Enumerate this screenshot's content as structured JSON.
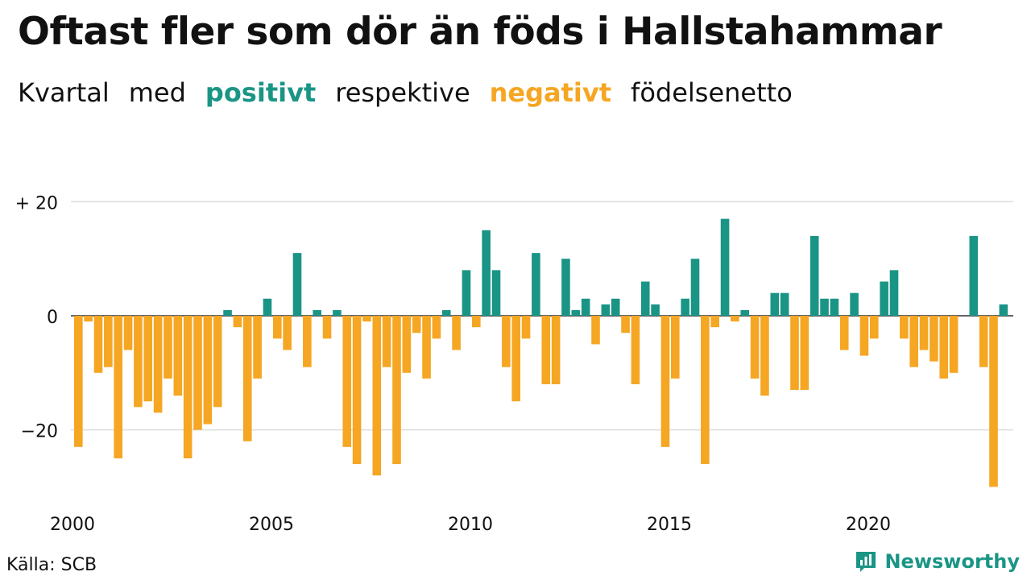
{
  "title": "Oftast fler som dör än föds i Hallstahammar",
  "subtitle": {
    "part1": "Kvartal",
    "part2": "med",
    "positive": "positivt",
    "part3": "respektive",
    "negative": "negativt",
    "part4": "födelsenetto"
  },
  "colors": {
    "positive": "#1a9585",
    "negative": "#f5a623",
    "grid": "#dddddd",
    "brand": "#1a9585"
  },
  "source": "Källa: SCB",
  "brand": {
    "name": "Newsworthy",
    "icon": "bar-chart-bubble-icon"
  },
  "chart_data": {
    "type": "bar",
    "x_start_year": 2000,
    "periods_per_year": 4,
    "y_ticks": [
      {
        "value": 20,
        "label": "+ 20"
      },
      {
        "value": 0,
        "label": "0"
      },
      {
        "value": -20,
        "label": "−20"
      }
    ],
    "x_ticks": [
      {
        "year": 2000,
        "label": "2000"
      },
      {
        "year": 2005,
        "label": "2005"
      },
      {
        "year": 2010,
        "label": "2010"
      },
      {
        "year": 2015,
        "label": "2015"
      },
      {
        "year": 2020,
        "label": "2020"
      }
    ],
    "ylim": [
      -30,
      20
    ],
    "grid": true,
    "values": [
      -23,
      -1,
      -10,
      -9,
      -25,
      -6,
      -16,
      -15,
      -17,
      -11,
      -14,
      -25,
      -20,
      -19,
      -16,
      1,
      -2,
      -22,
      -11,
      3,
      -4,
      -6,
      11,
      -9,
      1,
      -4,
      1,
      -23,
      -26,
      -1,
      -28,
      -9,
      -26,
      -10,
      -3,
      -11,
      -4,
      1,
      -6,
      8,
      -2,
      15,
      8,
      -9,
      -15,
      -4,
      11,
      -12,
      -12,
      10,
      1,
      3,
      -5,
      2,
      3,
      -3,
      -12,
      6,
      2,
      -23,
      -11,
      3,
      10,
      -26,
      -2,
      17,
      -1,
      1,
      -11,
      -14,
      4,
      4,
      -13,
      -13,
      14,
      3,
      3,
      -6,
      4,
      -7,
      -4,
      6,
      8,
      -4,
      -9,
      -6,
      -8,
      -11,
      -10,
      0,
      14,
      -9,
      -30,
      2
    ]
  }
}
